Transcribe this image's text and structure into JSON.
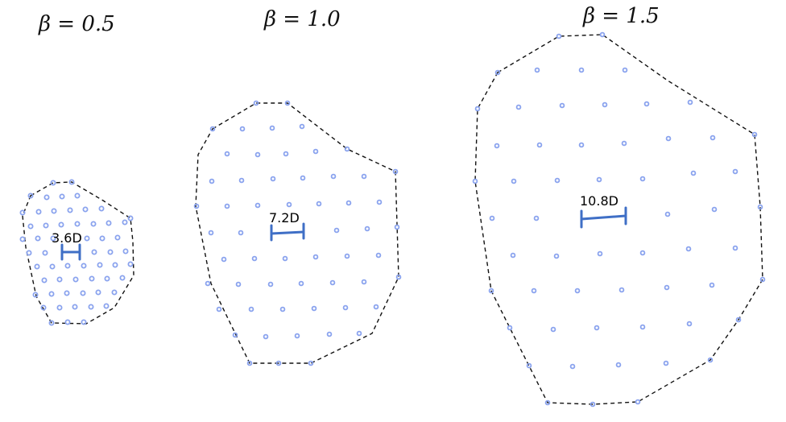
{
  "colors": {
    "node": "#8aa3ee",
    "scale_bar": "#3f6fc6",
    "hull": "#111111"
  },
  "panels": [
    {
      "title": "β = 0.5",
      "scale_label": "3.6D"
    },
    {
      "title": "β = 1.0",
      "scale_label": "7.2D"
    },
    {
      "title": "β = 1.5",
      "scale_label": "10.8D"
    }
  ]
}
